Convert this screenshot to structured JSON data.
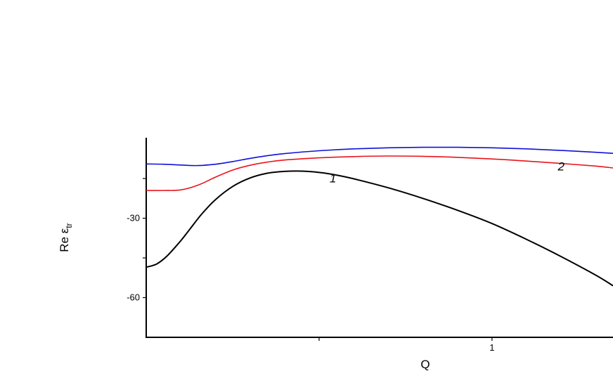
{
  "chart_data": {
    "type": "line",
    "title": "",
    "xlabel": "Q",
    "ylabel": "Re ε_tr",
    "xlim": [
      0.0,
      1.35
    ],
    "ylim": [
      -75,
      2
    ],
    "x_ticks": [
      {
        "value": 0.5,
        "label": ""
      },
      {
        "value": 1.0,
        "label": "1"
      },
      {
        "value": 1.5,
        "label": ""
      }
    ],
    "y_ticks": [
      {
        "value": -15,
        "label": ""
      },
      {
        "value": -30,
        "label": "-30"
      },
      {
        "value": -45,
        "label": ""
      },
      {
        "value": -60,
        "label": "-60"
      }
    ],
    "grid": false,
    "legend": "none",
    "series": [
      {
        "label": "1",
        "color": "#000000",
        "label_at": {
          "x": 0.54,
          "y": -16.5
        },
        "x": [
          0.0,
          0.03,
          0.06,
          0.1,
          0.13,
          0.16,
          0.2,
          0.25,
          0.3,
          0.35,
          0.4,
          0.45,
          0.5,
          0.55,
          0.6,
          0.7,
          0.8,
          0.9,
          1.0,
          1.1,
          1.2,
          1.3,
          1.35
        ],
        "y": [
          -48.5,
          -47.3,
          -44.3,
          -38.5,
          -33.5,
          -28.5,
          -23.0,
          -18.0,
          -14.8,
          -13.0,
          -12.3,
          -12.2,
          -12.7,
          -13.7,
          -15.1,
          -18.5,
          -22.5,
          -27.0,
          -32.0,
          -38.0,
          -44.5,
          -51.5,
          -55.5
        ]
      },
      {
        "label": "2",
        "color": "#e8141c",
        "label_at": {
          "x": 1.2,
          "y": -12.0
        },
        "x": [
          0.0,
          0.05,
          0.1,
          0.15,
          0.2,
          0.25,
          0.3,
          0.35,
          0.4,
          0.5,
          0.6,
          0.7,
          0.8,
          0.9,
          1.0,
          1.1,
          1.2,
          1.3,
          1.35
        ],
        "y": [
          -19.5,
          -19.5,
          -19.3,
          -17.5,
          -14.5,
          -11.8,
          -10.0,
          -8.8,
          -8.0,
          -7.2,
          -6.7,
          -6.5,
          -6.6,
          -7.0,
          -7.6,
          -8.4,
          -9.3,
          -10.3,
          -11.0
        ]
      },
      {
        "label": "",
        "color": "#1010d8",
        "label_at": {
          "x": 1.34,
          "y": -7.5
        },
        "x": [
          0.0,
          0.05,
          0.1,
          0.15,
          0.2,
          0.25,
          0.3,
          0.35,
          0.4,
          0.5,
          0.6,
          0.7,
          0.8,
          0.9,
          1.0,
          1.1,
          1.2,
          1.3,
          1.35
        ],
        "y": [
          -9.5,
          -9.6,
          -9.9,
          -10.1,
          -9.6,
          -8.6,
          -7.4,
          -6.4,
          -5.6,
          -4.5,
          -3.8,
          -3.4,
          -3.2,
          -3.2,
          -3.4,
          -3.8,
          -4.4,
          -5.1,
          -5.5
        ]
      }
    ]
  }
}
